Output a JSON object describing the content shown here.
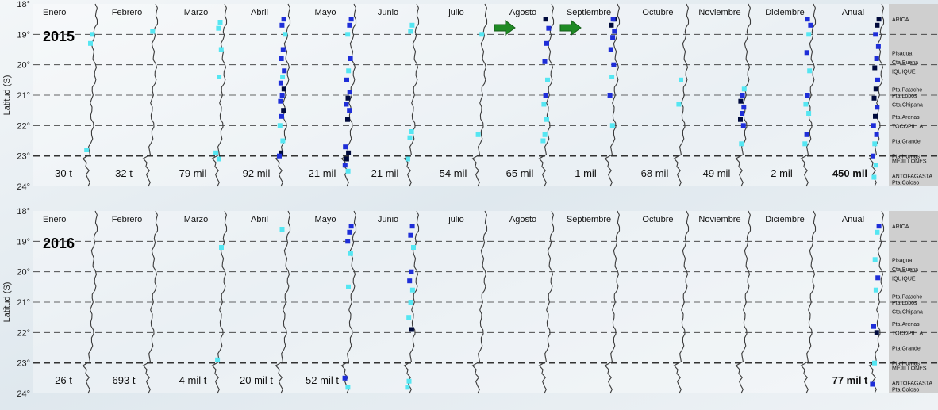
{
  "chart_data": {
    "type": "heatmap",
    "ylabel": "Latitud (S)",
    "ylim": [
      18,
      24
    ],
    "lat_ticks": [
      "18°",
      "19°",
      "20°",
      "21°",
      "22°",
      "23°",
      "24°"
    ],
    "columns": [
      "Enero",
      "Febrero",
      "Marzo",
      "Abril",
      "Mayo",
      "Junio",
      "julio",
      "Agosto",
      "Septiembre",
      "Octubre",
      "Noviembre",
      "Diciembre",
      "Anual"
    ],
    "places": [
      "ARICA",
      "Pisagua",
      "Cta.Buena",
      "IQUIQUE",
      "Pta.Patache",
      "Pta.Lobos",
      "Cta.Chipana",
      "Pta.Arenas",
      "TOCOPILLA",
      "Pta.Grande",
      "Pta.Hornos",
      "MEJILLONES",
      "ANTOFAGASTA",
      "Pta.Coloso"
    ],
    "colors": {
      "low": "#55e6f2",
      "mid": "#1e2ed8",
      "high": "#000a3c",
      "coast": "#3a3a3a",
      "land": "#cfcfcf",
      "arrow": "#1f8a24"
    },
    "panels": [
      {
        "year": "2015",
        "totals": [
          "30 t",
          "32 t",
          "79 mil",
          "92 mil",
          "21 mil",
          "21 mil",
          "54 mil",
          "65 mil",
          "1 mil",
          "68 mil",
          "49 mil",
          "2 mil",
          "450 mil"
        ],
        "arrow_columns": [
          7,
          8
        ],
        "cells": [
          [
            0,
            19.0,
            1
          ],
          [
            0,
            19.3,
            1
          ],
          [
            0,
            22.8,
            1
          ],
          [
            1,
            18.9,
            1
          ],
          [
            2,
            18.6,
            1
          ],
          [
            2,
            18.8,
            1
          ],
          [
            2,
            19.5,
            1
          ],
          [
            2,
            20.4,
            1
          ],
          [
            2,
            22.9,
            1
          ],
          [
            2,
            23.1,
            1
          ],
          [
            3,
            18.5,
            2
          ],
          [
            3,
            18.7,
            2
          ],
          [
            3,
            19.0,
            1
          ],
          [
            3,
            19.5,
            2
          ],
          [
            3,
            19.8,
            2
          ],
          [
            3,
            20.2,
            2
          ],
          [
            3,
            20.4,
            1
          ],
          [
            3,
            20.6,
            2
          ],
          [
            3,
            20.8,
            3
          ],
          [
            3,
            21.0,
            2
          ],
          [
            3,
            21.2,
            2
          ],
          [
            3,
            21.5,
            3
          ],
          [
            3,
            21.7,
            2
          ],
          [
            3,
            22.0,
            1
          ],
          [
            3,
            22.5,
            1
          ],
          [
            3,
            22.9,
            3
          ],
          [
            3,
            23.0,
            2
          ],
          [
            4,
            18.5,
            2
          ],
          [
            4,
            18.7,
            2
          ],
          [
            4,
            19.0,
            1
          ],
          [
            4,
            19.8,
            2
          ],
          [
            4,
            20.2,
            1
          ],
          [
            4,
            20.5,
            2
          ],
          [
            4,
            20.9,
            2
          ],
          [
            4,
            21.1,
            3
          ],
          [
            4,
            21.3,
            2
          ],
          [
            4,
            21.5,
            2
          ],
          [
            4,
            21.8,
            3
          ],
          [
            4,
            22.7,
            2
          ],
          [
            4,
            22.9,
            3
          ],
          [
            4,
            23.1,
            3
          ],
          [
            4,
            23.3,
            2
          ],
          [
            4,
            23.5,
            1
          ],
          [
            5,
            18.7,
            1
          ],
          [
            5,
            18.9,
            1
          ],
          [
            5,
            22.2,
            1
          ],
          [
            5,
            22.4,
            1
          ],
          [
            5,
            23.1,
            1
          ],
          [
            6,
            19.0,
            1
          ],
          [
            6,
            22.3,
            1
          ],
          [
            7,
            18.5,
            3
          ],
          [
            7,
            18.8,
            2
          ],
          [
            7,
            19.3,
            2
          ],
          [
            7,
            19.9,
            2
          ],
          [
            7,
            20.5,
            1
          ],
          [
            7,
            21.0,
            2
          ],
          [
            7,
            21.3,
            1
          ],
          [
            7,
            21.8,
            1
          ],
          [
            7,
            22.3,
            1
          ],
          [
            7,
            22.5,
            1
          ],
          [
            8,
            18.5,
            3
          ],
          [
            8,
            18.5,
            2
          ],
          [
            8,
            18.7,
            3
          ],
          [
            8,
            18.9,
            2
          ],
          [
            8,
            19.1,
            2
          ],
          [
            8,
            19.5,
            2
          ],
          [
            8,
            20.0,
            2
          ],
          [
            8,
            20.4,
            1
          ],
          [
            8,
            21.0,
            2
          ],
          [
            8,
            22.0,
            1
          ],
          [
            9,
            20.5,
            1
          ],
          [
            9,
            21.3,
            1
          ],
          [
            10,
            20.8,
            1
          ],
          [
            10,
            21.0,
            2
          ],
          [
            10,
            21.2,
            3
          ],
          [
            10,
            21.4,
            2
          ],
          [
            10,
            21.6,
            2
          ],
          [
            10,
            21.8,
            3
          ],
          [
            10,
            22.0,
            2
          ],
          [
            10,
            22.6,
            1
          ],
          [
            11,
            18.5,
            2
          ],
          [
            11,
            18.7,
            2
          ],
          [
            11,
            19.0,
            1
          ],
          [
            11,
            19.6,
            2
          ],
          [
            11,
            20.2,
            1
          ],
          [
            11,
            21.0,
            2
          ],
          [
            11,
            21.3,
            1
          ],
          [
            11,
            21.6,
            1
          ],
          [
            11,
            22.3,
            2
          ],
          [
            11,
            22.6,
            1
          ],
          [
            12,
            18.5,
            3
          ],
          [
            12,
            18.7,
            3
          ],
          [
            12,
            19.0,
            2
          ],
          [
            12,
            19.4,
            2
          ],
          [
            12,
            19.8,
            2
          ],
          [
            12,
            20.1,
            3
          ],
          [
            12,
            20.5,
            2
          ],
          [
            12,
            20.8,
            3
          ],
          [
            12,
            21.1,
            3
          ],
          [
            12,
            21.4,
            2
          ],
          [
            12,
            21.7,
            3
          ],
          [
            12,
            22.0,
            2
          ],
          [
            12,
            22.3,
            2
          ],
          [
            12,
            22.6,
            1
          ],
          [
            12,
            23.0,
            2
          ],
          [
            12,
            23.3,
            1
          ],
          [
            12,
            23.7,
            1
          ]
        ]
      },
      {
        "year": "2016",
        "totals": [
          "26 t",
          "693 t",
          "4 mil t",
          "20 mil t",
          "52 mil t",
          "",
          "",
          "",
          "",
          "",
          "",
          "",
          "77 mil t"
        ],
        "arrow_columns": [],
        "cells": [
          [
            2,
            19.2,
            1
          ],
          [
            2,
            22.9,
            1
          ],
          [
            3,
            18.6,
            1
          ],
          [
            4,
            18.5,
            2
          ],
          [
            4,
            18.7,
            2
          ],
          [
            4,
            19.0,
            2
          ],
          [
            4,
            19.4,
            1
          ],
          [
            4,
            20.5,
            1
          ],
          [
            4,
            23.5,
            2
          ],
          [
            4,
            23.8,
            1
          ],
          [
            5,
            18.5,
            2
          ],
          [
            5,
            18.8,
            2
          ],
          [
            5,
            19.2,
            1
          ],
          [
            5,
            20.0,
            2
          ],
          [
            5,
            20.3,
            2
          ],
          [
            5,
            20.6,
            1
          ],
          [
            5,
            21.0,
            1
          ],
          [
            5,
            21.5,
            1
          ],
          [
            5,
            21.9,
            3
          ],
          [
            5,
            23.6,
            1
          ],
          [
            5,
            23.8,
            1
          ],
          [
            12,
            18.5,
            2
          ],
          [
            12,
            18.7,
            1
          ],
          [
            12,
            19.6,
            1
          ],
          [
            12,
            20.2,
            2
          ],
          [
            12,
            20.6,
            1
          ],
          [
            12,
            21.8,
            2
          ],
          [
            12,
            22.0,
            3
          ],
          [
            12,
            23.0,
            1
          ],
          [
            12,
            23.7,
            2
          ]
        ]
      }
    ]
  }
}
